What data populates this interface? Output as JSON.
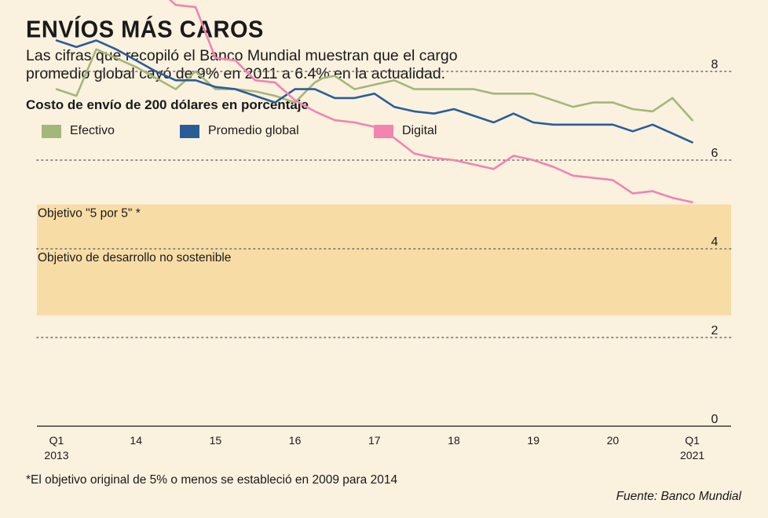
{
  "title": "ENVÍOS MÁS CAROS",
  "subtitle": "Las cifras que recopiló el Banco Mundial muestran que el cargo promedio global cayó de 9% en 2011 a 6.4% en la actualidad.",
  "footnote": "*El objetivo original de 5% o menos se estableció en 2009 para 2014",
  "source": "Fuente: Banco Mundial",
  "colors": {
    "efectivo": "#a4b77a",
    "promedio": "#2a5d98",
    "digital": "#ef85b0",
    "band": "#f8dca6",
    "grid": "#6b6b6b",
    "background": "#fbf1df"
  },
  "chart_data": {
    "type": "line",
    "title": "Costo de envío de 200 dólares en porcentaje",
    "ylim": [
      0,
      12
    ],
    "y_ticks": [
      "0",
      "2",
      "4",
      "6",
      "8",
      "10",
      "12"
    ],
    "x_tick_labels": [
      {
        "label": "Q1",
        "sub": "2013"
      },
      {
        "label": "14"
      },
      {
        "label": "15"
      },
      {
        "label": "16"
      },
      {
        "label": "17"
      },
      {
        "label": "18"
      },
      {
        "label": "19"
      },
      {
        "label": "20"
      },
      {
        "label": "Q1",
        "sub": "2021"
      }
    ],
    "bands": [
      {
        "label": "Objetivo \"5 por 5\" *",
        "from": 4,
        "to": 5
      },
      {
        "label": "Objetivo de desarrollo no sostenible",
        "from": 2.5,
        "to": 4
      }
    ],
    "series": [
      {
        "name": "Efectivo",
        "key": "efectivo",
        "x": [
          0,
          0.25,
          0.5,
          1,
          1.5,
          1.75,
          2,
          2.25,
          2.5,
          2.75,
          3,
          3.25,
          3.35,
          3.5,
          3.75,
          4,
          4.25,
          4.5,
          4.75,
          5,
          5.25,
          5.5,
          5.75,
          6,
          6.25,
          6.5,
          6.75,
          7,
          7.25,
          7.5,
          7.75,
          8
        ],
        "y": [
          7.6,
          7.45,
          8.5,
          8.1,
          7.6,
          8.0,
          7.6,
          7.6,
          7.55,
          7.45,
          7.3,
          7.75,
          7.85,
          7.9,
          7.6,
          7.7,
          7.8,
          7.6,
          7.6,
          7.6,
          7.6,
          7.5,
          7.5,
          7.5,
          7.35,
          7.2,
          7.3,
          7.3,
          7.15,
          7.1,
          7.4,
          6.9
        ]
      },
      {
        "name": "Promedio global",
        "key": "promedio",
        "x": [
          0,
          0.25,
          0.5,
          0.75,
          1,
          1.25,
          1.5,
          1.75,
          2,
          2.25,
          2.5,
          2.75,
          3,
          3.25,
          3.5,
          3.75,
          4,
          4.25,
          4.5,
          4.75,
          5,
          5.25,
          5.5,
          5.75,
          6,
          6.25,
          6.5,
          6.75,
          7,
          7.25,
          7.5,
          7.75,
          8
        ],
        "y": [
          8.7,
          8.55,
          8.7,
          8.5,
          8.25,
          8.0,
          7.8,
          7.8,
          7.65,
          7.6,
          7.45,
          7.3,
          7.6,
          7.6,
          7.4,
          7.4,
          7.5,
          7.2,
          7.1,
          7.05,
          7.15,
          7.0,
          6.85,
          7.05,
          6.85,
          6.8,
          6.8,
          6.8,
          6.8,
          6.65,
          6.8,
          6.6,
          6.4
        ]
      },
      {
        "name": "Digital",
        "key": "digital",
        "x": [
          0,
          0.22,
          0.5,
          0.75,
          1,
          1.25,
          1.5,
          1.75,
          2,
          2.25,
          2.5,
          2.75,
          3,
          3.25,
          3.5,
          3.75,
          4,
          4.25,
          4.5,
          4.75,
          5,
          5.25,
          5.5,
          5.75,
          6,
          6.25,
          6.5,
          6.75,
          7,
          7.25,
          7.5,
          7.75,
          8
        ],
        "y": [
          11.3,
          12.2,
          11.4,
          10.7,
          10.65,
          9.9,
          9.5,
          9.45,
          8.3,
          8.25,
          7.8,
          7.75,
          7.35,
          7.1,
          6.9,
          6.85,
          6.75,
          6.5,
          6.15,
          6.05,
          6.0,
          5.9,
          5.8,
          6.1,
          6.0,
          5.85,
          5.65,
          5.6,
          5.55,
          5.25,
          5.3,
          5.15,
          5.05
        ]
      }
    ]
  }
}
